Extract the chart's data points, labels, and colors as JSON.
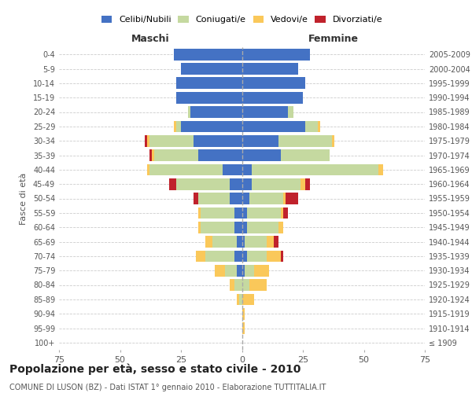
{
  "age_groups": [
    "100+",
    "95-99",
    "90-94",
    "85-89",
    "80-84",
    "75-79",
    "70-74",
    "65-69",
    "60-64",
    "55-59",
    "50-54",
    "45-49",
    "40-44",
    "35-39",
    "30-34",
    "25-29",
    "20-24",
    "15-19",
    "10-14",
    "5-9",
    "0-4"
  ],
  "birth_years": [
    "≤ 1909",
    "1910-1914",
    "1915-1919",
    "1920-1924",
    "1925-1929",
    "1930-1934",
    "1935-1939",
    "1940-1944",
    "1945-1949",
    "1950-1954",
    "1955-1959",
    "1960-1964",
    "1965-1969",
    "1970-1974",
    "1975-1979",
    "1980-1984",
    "1985-1989",
    "1990-1994",
    "1995-1999",
    "2000-2004",
    "2005-2009"
  ],
  "male_celibe": [
    0,
    0,
    0,
    0,
    0,
    2,
    3,
    2,
    3,
    3,
    5,
    5,
    8,
    18,
    20,
    25,
    21,
    27,
    27,
    25,
    28
  ],
  "male_coniugato": [
    0,
    0,
    0,
    1,
    3,
    5,
    12,
    10,
    14,
    14,
    13,
    22,
    30,
    18,
    18,
    2,
    1,
    0,
    0,
    0,
    0
  ],
  "male_vedovo": [
    0,
    0,
    0,
    1,
    2,
    4,
    4,
    3,
    1,
    1,
    0,
    0,
    1,
    1,
    1,
    1,
    0,
    0,
    0,
    0,
    0
  ],
  "male_divorziato": [
    0,
    0,
    0,
    0,
    0,
    0,
    0,
    0,
    0,
    0,
    2,
    3,
    0,
    1,
    1,
    0,
    0,
    0,
    0,
    0,
    0
  ],
  "female_celibe": [
    0,
    0,
    0,
    0,
    0,
    1,
    2,
    1,
    2,
    2,
    3,
    4,
    4,
    16,
    15,
    26,
    19,
    25,
    26,
    23,
    28
  ],
  "female_coniugata": [
    0,
    0,
    0,
    0,
    3,
    4,
    8,
    9,
    13,
    14,
    14,
    20,
    52,
    20,
    22,
    5,
    2,
    0,
    0,
    0,
    0
  ],
  "female_vedova": [
    0,
    1,
    1,
    5,
    7,
    6,
    6,
    3,
    2,
    1,
    1,
    2,
    2,
    0,
    1,
    1,
    0,
    0,
    0,
    0,
    0
  ],
  "female_divorziata": [
    0,
    0,
    0,
    0,
    0,
    0,
    1,
    2,
    0,
    2,
    5,
    2,
    0,
    0,
    0,
    0,
    0,
    0,
    0,
    0,
    0
  ],
  "colors": {
    "celibe": "#4472C4",
    "coniugato": "#C5D9A0",
    "vedovo": "#FAC85A",
    "divorziato": "#C0222C"
  },
  "xlim": 75,
  "title": "Popolazione per età, sesso e stato civile - 2010",
  "subtitle": "COMUNE DI LUSON (BZ) - Dati ISTAT 1° gennaio 2010 - Elaborazione TUTTITALIA.IT",
  "ylabel_left": "Fasce di età",
  "label_maschi": "Maschi",
  "label_femmine": "Femmine",
  "legend_labels": [
    "Celibi/Nubili",
    "Coniugati/e",
    "Vedovi/e",
    "Divorziati/e"
  ]
}
